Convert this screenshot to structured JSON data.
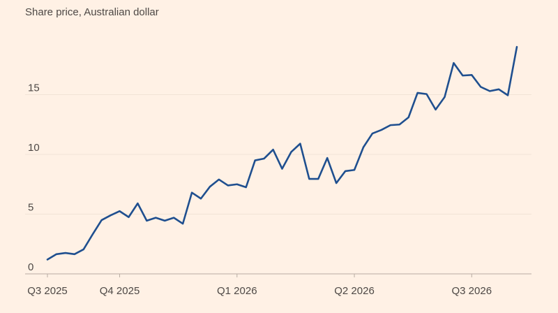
{
  "chart_data": {
    "type": "line",
    "title": "Share price, Australian dollar",
    "categories": [
      "Q3 2025",
      null,
      null,
      null,
      null,
      null,
      null,
      null,
      "Q4 2025",
      null,
      null,
      null,
      null,
      null,
      null,
      null,
      null,
      null,
      null,
      null,
      null,
      "Q1 2026",
      null,
      null,
      null,
      null,
      null,
      null,
      null,
      null,
      null,
      null,
      null,
      null,
      "Q2 2026",
      null,
      null,
      null,
      null,
      null,
      null,
      null,
      null,
      null,
      null,
      null,
      null,
      "Q3 2026",
      null,
      null,
      null,
      null,
      null
    ],
    "values": [
      1.2,
      1.65,
      1.75,
      1.65,
      2.05,
      3.3,
      4.5,
      4.9,
      5.25,
      4.75,
      5.9,
      4.45,
      4.7,
      4.45,
      4.7,
      4.2,
      6.8,
      6.3,
      7.3,
      7.9,
      7.4,
      7.5,
      7.25,
      9.5,
      9.65,
      10.4,
      8.8,
      10.2,
      10.9,
      7.95,
      7.95,
      9.7,
      7.6,
      8.6,
      8.7,
      10.6,
      11.75,
      12.05,
      12.45,
      12.5,
      13.1,
      15.15,
      15.05,
      13.75,
      14.8,
      17.65,
      16.6,
      16.65,
      15.65,
      15.3,
      15.45,
      14.95,
      19.0
    ],
    "color": "#1f4f8f",
    "ylim": [
      0,
      20
    ],
    "yticks": [
      0,
      5,
      10,
      15
    ],
    "grid": true
  }
}
